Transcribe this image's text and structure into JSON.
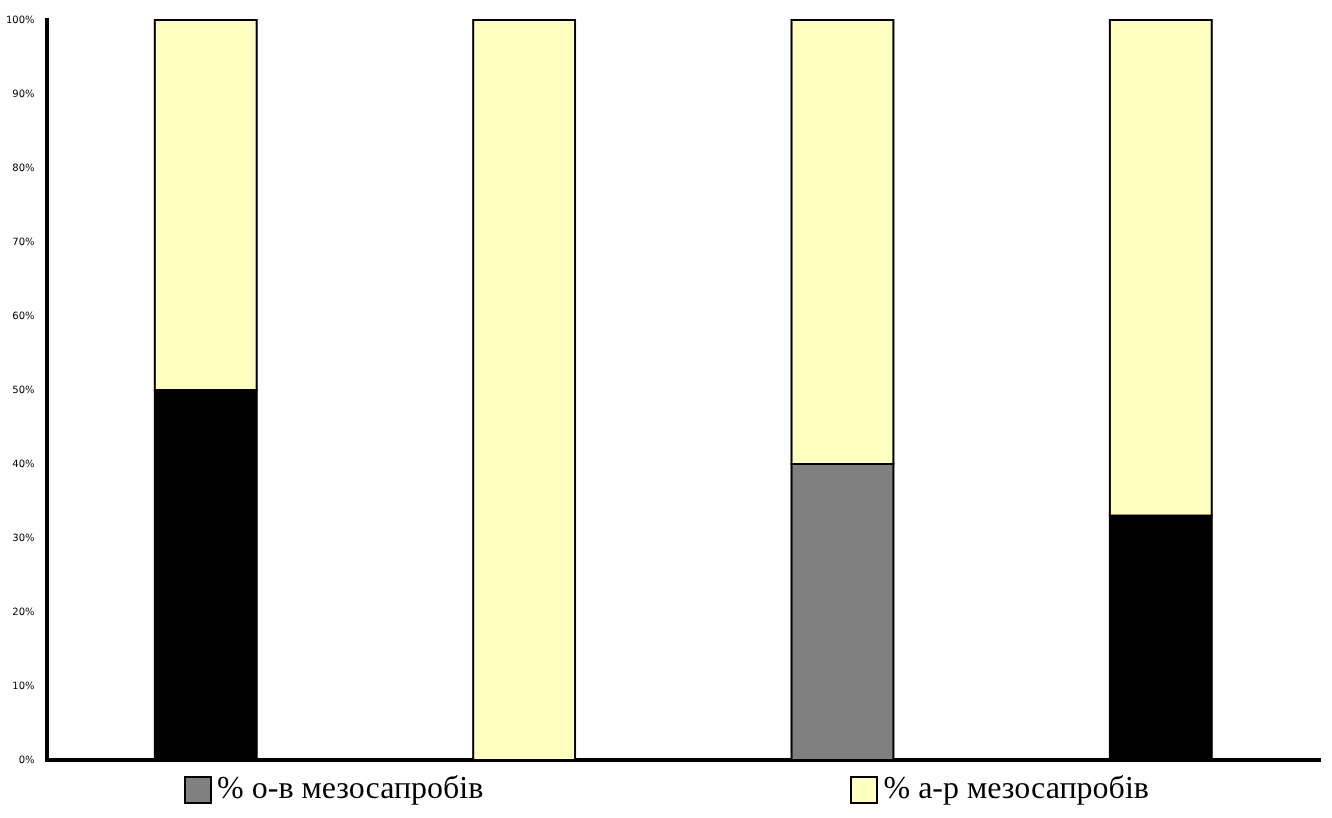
{
  "chart_data": {
    "type": "bar",
    "stacked": true,
    "categories": [
      null,
      null,
      null,
      null
    ],
    "series": [
      {
        "name": "% о-в мезосапробів",
        "color": "#808080",
        "values": [
          0,
          0,
          40,
          0
        ]
      },
      {
        "color": "#000000",
        "values": [
          50,
          0,
          0,
          33
        ]
      },
      {
        "name": "% а-р мезосапробів",
        "color": "#ffffc0",
        "values": [
          50,
          100,
          60,
          67
        ]
      }
    ],
    "ylim": [
      0,
      100
    ],
    "yticks": [
      {
        "value": 0,
        "label": "0%"
      },
      {
        "value": 10,
        "label": "10%"
      },
      {
        "value": 20,
        "label": "20%"
      },
      {
        "value": 30,
        "label": "30%"
      },
      {
        "value": 40,
        "label": "40%"
      },
      {
        "value": 50,
        "label": "50%"
      },
      {
        "value": 60,
        "label": "60%"
      },
      {
        "value": 70,
        "label": "70%"
      },
      {
        "value": 80,
        "label": "80%"
      },
      {
        "value": 90,
        "label": "90%"
      },
      {
        "value": 100,
        "label": "100%"
      }
    ],
    "grid": false,
    "legend": "bottom"
  }
}
